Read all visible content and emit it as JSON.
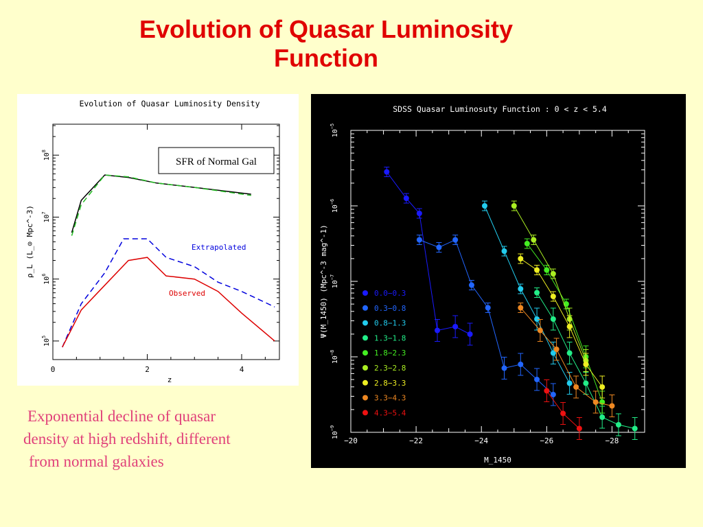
{
  "slide": {
    "title_lines": [
      "Evolution of Quasar Luminosity",
      "Function"
    ],
    "caption_lines": [
      "Exponential decline of quasar",
      "density at high redshift, different",
      "from normal galaxies"
    ],
    "colors": {
      "background": "#ffffcc",
      "title": "#e00000",
      "caption": "#e0407a"
    }
  },
  "chart_data": [
    {
      "type": "line",
      "title": "Evolution of Quasar Luminosity Density",
      "xlabel": "z",
      "ylabel": "ρ_L (L_⊙ Mpc^-3)",
      "xlim": [
        0,
        4.8
      ],
      "ylim_log10": [
        4.7,
        8.5
      ],
      "y_log": true,
      "xticks": [
        "0",
        "2",
        "4"
      ],
      "yticks": [
        "10^5",
        "10^6",
        "10^7",
        "10^8"
      ],
      "annotation_box": "SFR of Normal Gal",
      "series": [
        {
          "name": "",
          "color": "#000000",
          "dash": "solid",
          "x": [
            0.4,
            0.6,
            1.1,
            1.6,
            2.2,
            3.0,
            4.2
          ],
          "log10_y": [
            6.75,
            7.27,
            7.68,
            7.64,
            7.55,
            7.48,
            7.37
          ]
        },
        {
          "name": "",
          "color": "#22bb22",
          "dash": "dashed",
          "x": [
            0.4,
            0.6,
            1.1,
            1.6,
            2.2,
            3.0,
            4.2
          ],
          "log10_y": [
            6.7,
            7.2,
            7.68,
            7.65,
            7.55,
            7.48,
            7.35
          ]
        },
        {
          "name": "Extrapolated",
          "color": "#0000dd",
          "dash": "dashed",
          "x": [
            0.2,
            0.6,
            1.1,
            1.5,
            2.0,
            2.4,
            3.0,
            3.5,
            4.0,
            4.7
          ],
          "log10_y": [
            4.9,
            5.6,
            6.1,
            6.65,
            6.65,
            6.35,
            6.2,
            5.95,
            5.8,
            5.55
          ]
        },
        {
          "name": "Observed",
          "color": "#dd0000",
          "dash": "solid",
          "x": [
            0.2,
            0.6,
            1.1,
            1.6,
            2.0,
            2.4,
            3.0,
            3.5,
            4.0,
            4.7
          ],
          "log10_y": [
            4.9,
            5.5,
            5.9,
            6.3,
            6.35,
            6.05,
            6.0,
            5.8,
            5.45,
            5.0
          ]
        }
      ]
    },
    {
      "type": "scatter",
      "title": "SDSS Quasar Luminosuty Function : 0 < z < 5.4",
      "xlabel": "M_1450",
      "ylabel": "Ψ(M_1450) (Mpc^-3 mag^-1)",
      "xlim": [
        -20,
        -29
      ],
      "ylim_log10": [
        -9,
        -5
      ],
      "y_log": true,
      "xticks": [
        "−20",
        "−22",
        "−24",
        "−26",
        "−28"
      ],
      "yticks": [
        "10^-9",
        "10^-8",
        "10^-7",
        "10^-6",
        "10^-5"
      ],
      "legend_position": "bottom-left",
      "series": [
        {
          "name": "0.0−0.3",
          "color": "#1a1aff",
          "x": [
            -21.1,
            -21.7,
            -22.1,
            -22.65,
            -23.2,
            -23.65
          ],
          "log10_y": [
            -5.55,
            -5.9,
            -6.1,
            -7.65,
            -7.6,
            -7.7
          ]
        },
        {
          "name": "0.3−0.8",
          "color": "#2266ff",
          "x": [
            -22.1,
            -22.7,
            -23.2,
            -23.7,
            -24.2,
            -24.7,
            -25.2,
            -25.7,
            -26.2
          ],
          "log10_y": [
            -6.45,
            -6.55,
            -6.45,
            -7.05,
            -7.35,
            -8.15,
            -8.1,
            -8.3,
            -8.5
          ]
        },
        {
          "name": "0.8−1.3",
          "color": "#22ccee",
          "x": [
            -24.1,
            -24.7,
            -25.2,
            -25.7,
            -26.2,
            -26.7
          ],
          "log10_y": [
            -6.0,
            -6.6,
            -7.1,
            -7.5,
            -7.95,
            -8.35
          ]
        },
        {
          "name": "1.3−1.8",
          "color": "#22ee88",
          "x": [
            -25.7,
            -26.2,
            -26.7,
            -27.2,
            -27.7,
            -28.2,
            -28.7
          ],
          "log10_y": [
            -7.15,
            -7.5,
            -7.95,
            -8.35,
            -8.8,
            -8.9,
            -8.95
          ]
        },
        {
          "name": "1.8−2.3",
          "color": "#44ee22",
          "x": [
            -25.4,
            -26.0,
            -26.6,
            -27.2,
            -27.7
          ],
          "log10_y": [
            -6.5,
            -6.85,
            -7.3,
            -8.0,
            -8.6
          ]
        },
        {
          "name": "2.3−2.8",
          "color": "#aaee22",
          "x": [
            -25.0,
            -25.6,
            -26.2,
            -26.7,
            -27.2
          ],
          "log10_y": [
            -6.0,
            -6.45,
            -6.9,
            -7.5,
            -8.05
          ]
        },
        {
          "name": "2.8−3.3",
          "color": "#eeee22",
          "x": [
            -25.2,
            -25.7,
            -26.2,
            -26.7,
            -27.2,
            -27.7
          ],
          "log10_y": [
            -6.7,
            -6.85,
            -7.2,
            -7.6,
            -8.1,
            -8.4
          ]
        },
        {
          "name": "3.3−4.3",
          "color": "#ee8822",
          "x": [
            -25.2,
            -25.8,
            -26.3,
            -26.9,
            -27.5,
            -28.0
          ],
          "log10_y": [
            -7.35,
            -7.65,
            -7.9,
            -8.4,
            -8.6,
            -8.65
          ]
        },
        {
          "name": "4.3−5.4",
          "color": "#ee1111",
          "x": [
            -26.0,
            -26.5,
            -27.0
          ],
          "log10_y": [
            -8.45,
            -8.75,
            -8.95
          ]
        }
      ]
    }
  ]
}
